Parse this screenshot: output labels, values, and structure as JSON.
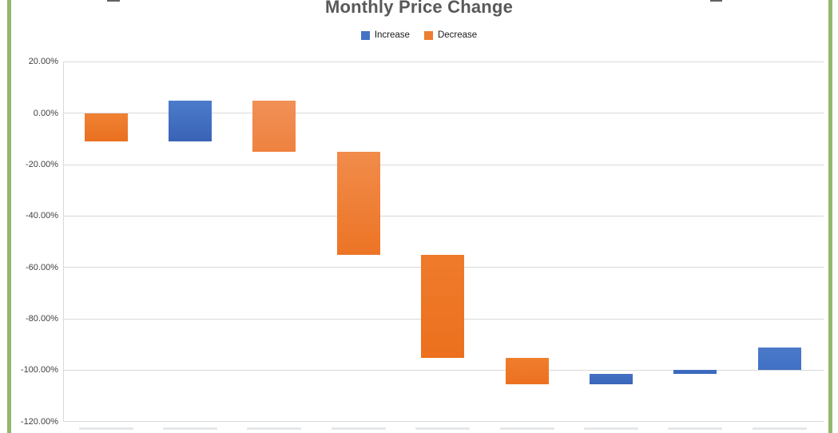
{
  "title": "Monthly Price Change",
  "legend": {
    "items": [
      {
        "label": "Increase",
        "color": "#4472C4"
      },
      {
        "label": "Decrease",
        "color": "#ED7D31"
      }
    ]
  },
  "page": {
    "left_stripe_color": "#92B76F",
    "right_stripe_color": "#92B76F"
  },
  "y_axis": {
    "ticks": [
      {
        "value": 20,
        "label": "20.00%"
      },
      {
        "value": 0,
        "label": "0.00%"
      },
      {
        "value": -20,
        "label": "-20.00%"
      },
      {
        "value": -40,
        "label": "-40.00%"
      },
      {
        "value": -60,
        "label": "-60.00%"
      },
      {
        "value": -80,
        "label": "-80.00%"
      },
      {
        "value": -100,
        "label": "-100.00%"
      },
      {
        "value": -120,
        "label": "-120.00%"
      }
    ]
  },
  "x_axis": {
    "labels_cut_off_at_bottom_edge": true
  },
  "chart_data": {
    "type": "bar",
    "subtype": "waterfall",
    "title": "Monthly Price Change",
    "xlabel": "",
    "ylabel": "",
    "ylim": [
      -120,
      20
    ],
    "ytick_step_pct": 20,
    "grid": true,
    "legend_position": "top",
    "series_names": [
      "Increase",
      "Decrease"
    ],
    "cumulative_points_pct": [
      0,
      -10.9,
      4.8,
      -15.0,
      -55.2,
      -95.2,
      -105.6,
      -101.5,
      -99.8,
      -91.3
    ],
    "bars": [
      {
        "index": 1,
        "series": "Decrease",
        "from_pct": 0,
        "to_pct": -10.9,
        "change_pct": -10.9,
        "fill_top": "#F08134",
        "fill_bottom": "#E9701F"
      },
      {
        "index": 2,
        "series": "Increase",
        "from_pct": -10.9,
        "to_pct": 4.8,
        "change_pct": 15.7,
        "fill_top": "#4C7BCB",
        "fill_bottom": "#3A63B6"
      },
      {
        "index": 3,
        "series": "Decrease",
        "from_pct": 4.8,
        "to_pct": -15.0,
        "change_pct": -19.8,
        "fill_top": "#F19056",
        "fill_bottom": "#EE8240"
      },
      {
        "index": 4,
        "series": "Decrease",
        "from_pct": -15.0,
        "to_pct": -55.2,
        "change_pct": -40.2,
        "fill_top": "#F18C4B",
        "fill_bottom": "#EC7425"
      },
      {
        "index": 5,
        "series": "Decrease",
        "from_pct": -55.2,
        "to_pct": -95.2,
        "change_pct": -40.0,
        "fill_top": "#EE7B2B",
        "fill_bottom": "#EC701E"
      },
      {
        "index": 6,
        "series": "Decrease",
        "from_pct": -95.2,
        "to_pct": -105.6,
        "change_pct": -10.4,
        "fill_top": "#EF7E2D",
        "fill_bottom": "#EC7120"
      },
      {
        "index": 7,
        "series": "Increase",
        "from_pct": -105.6,
        "to_pct": -101.5,
        "change_pct": 4.1,
        "fill_top": "#4571C4",
        "fill_bottom": "#3A65B9"
      },
      {
        "index": 8,
        "series": "Increase",
        "from_pct": -101.5,
        "to_pct": -99.8,
        "change_pct": 1.7,
        "fill_top": "#3F6DC2",
        "fill_bottom": "#3A66BA"
      },
      {
        "index": 9,
        "series": "Increase",
        "from_pct": -99.8,
        "to_pct": -91.3,
        "change_pct": 8.5,
        "fill_top": "#4C7ACA",
        "fill_bottom": "#3F70C4"
      }
    ]
  }
}
